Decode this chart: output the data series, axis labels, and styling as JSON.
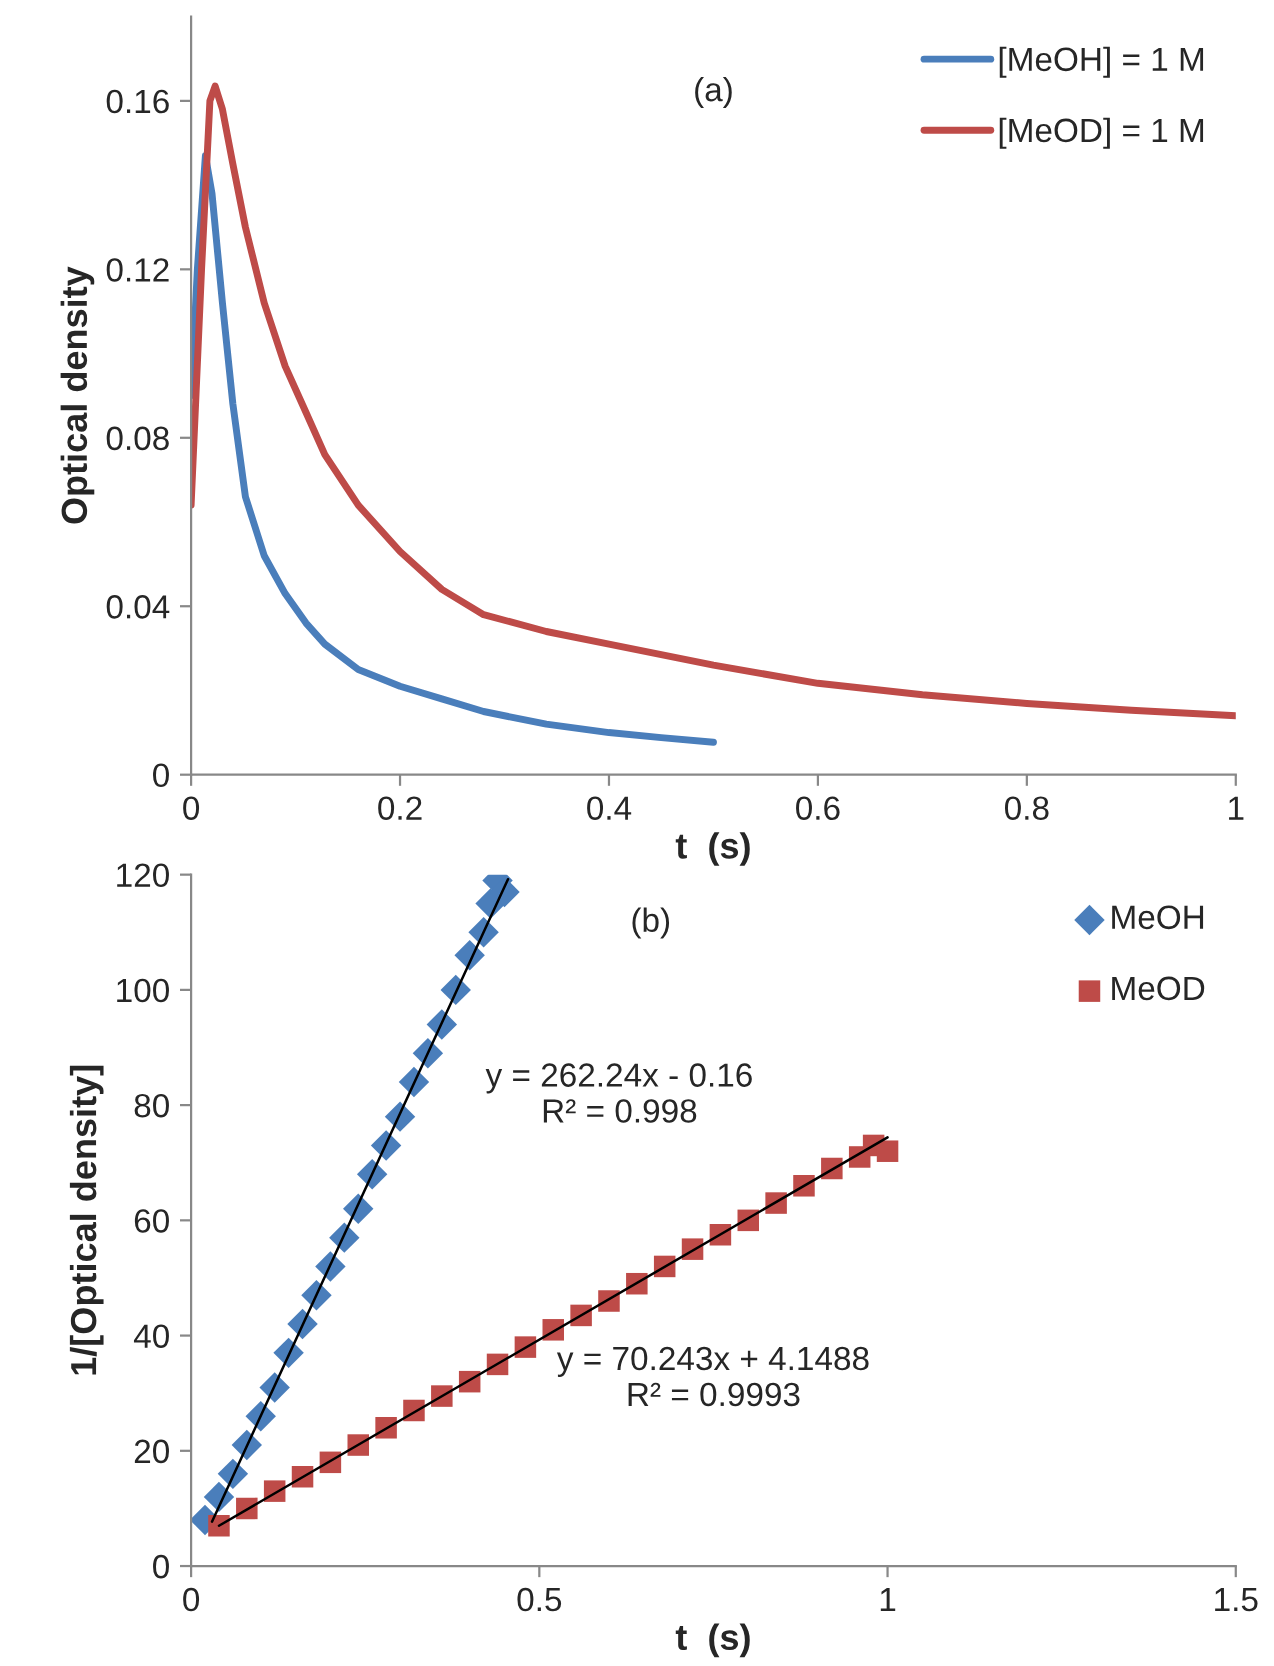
{
  "chart_data": [
    {
      "type": "line",
      "xlabel": "t  (s)",
      "ylabel": "Optical density",
      "xlim": [
        0,
        1
      ],
      "ylim": [
        0,
        0.18
      ],
      "xticks": [
        0,
        0.2,
        0.4,
        0.6,
        0.8,
        1
      ],
      "yticks": [
        0,
        0.04,
        0.08,
        0.12,
        0.16
      ],
      "grid": false,
      "legend": "top right",
      "annotations": [
        "(a)"
      ],
      "series": [
        {
          "name": "[MeOH] = 1 M",
          "color": "#4a7ebb",
          "x": [
            0.0,
            0.006,
            0.0137,
            0.02,
            0.03,
            0.04,
            0.052,
            0.07,
            0.09,
            0.11,
            0.128,
            0.16,
            0.2,
            0.24,
            0.28,
            0.34,
            0.4,
            0.45,
            0.5
          ],
          "values": [
            0.09,
            0.12,
            0.147,
            0.138,
            0.112,
            0.088,
            0.066,
            0.052,
            0.043,
            0.036,
            0.031,
            0.025,
            0.021,
            0.018,
            0.015,
            0.012,
            0.01,
            0.0088,
            0.0077
          ]
        },
        {
          "name": "[MeOD] = 1 M",
          "color": "#be4b48",
          "x": [
            0.0,
            0.01,
            0.018,
            0.023,
            0.03,
            0.04,
            0.052,
            0.07,
            0.09,
            0.11,
            0.128,
            0.16,
            0.2,
            0.24,
            0.28,
            0.34,
            0.4,
            0.5,
            0.6,
            0.7,
            0.8,
            0.9,
            1.0
          ],
          "values": [
            0.064,
            0.12,
            0.16,
            0.1635,
            0.158,
            0.145,
            0.13,
            0.112,
            0.097,
            0.086,
            0.076,
            0.064,
            0.053,
            0.044,
            0.038,
            0.034,
            0.031,
            0.026,
            0.0217,
            0.019,
            0.0169,
            0.0153,
            0.014
          ]
        }
      ]
    },
    {
      "type": "scatter",
      "xlabel": "t  (s)",
      "ylabel": "1/[Optical density]",
      "xlim": [
        0,
        1.5
      ],
      "ylim": [
        0,
        120
      ],
      "xticks": [
        0,
        0.5,
        1,
        1.5
      ],
      "yticks": [
        0,
        20,
        40,
        60,
        80,
        100,
        120
      ],
      "grid": false,
      "legend": "top right",
      "annotations": [
        "(b)",
        "y = 262.24x - 0.16\nR² = 0.998",
        "y = 70.243x + 4.1488\nR² = 0.9993"
      ],
      "series": [
        {
          "name": "MeOH",
          "color": "#4a7ebb",
          "marker": "diamond",
          "x": [
            0.02,
            0.04,
            0.06,
            0.08,
            0.1,
            0.12,
            0.14,
            0.16,
            0.18,
            0.2,
            0.22,
            0.24,
            0.26,
            0.28,
            0.3,
            0.32,
            0.34,
            0.36,
            0.38,
            0.4,
            0.42,
            0.43,
            0.44,
            0.45
          ],
          "values": [
            8,
            12,
            16,
            21,
            26,
            31,
            37,
            42,
            47,
            52,
            57,
            62,
            68,
            73,
            78,
            84,
            89,
            94,
            100,
            106,
            110,
            115,
            119,
            117
          ]
        },
        {
          "name": "MeOD",
          "color": "#be4b48",
          "marker": "square",
          "x": [
            0.04,
            0.08,
            0.12,
            0.16,
            0.2,
            0.24,
            0.28,
            0.32,
            0.36,
            0.4,
            0.44,
            0.48,
            0.52,
            0.56,
            0.6,
            0.64,
            0.68,
            0.72,
            0.76,
            0.8,
            0.84,
            0.88,
            0.92,
            0.96,
            0.98,
            1.0
          ],
          "values": [
            7,
            10,
            13,
            15.5,
            18,
            21,
            24,
            27,
            29.5,
            32,
            35,
            38,
            41,
            43.5,
            46,
            49,
            52,
            55,
            57.5,
            60,
            63,
            66,
            69,
            71,
            73,
            72
          ]
        },
        {
          "type": "line",
          "color": "#000000",
          "marker": "none",
          "x": [
            0.03,
            0.455
          ],
          "values": [
            7.7,
            119.2
          ]
        },
        {
          "type": "line",
          "color": "#000000",
          "marker": "none",
          "x": [
            0.04,
            1.0
          ],
          "values": [
            7,
            74.4
          ]
        }
      ]
    }
  ]
}
